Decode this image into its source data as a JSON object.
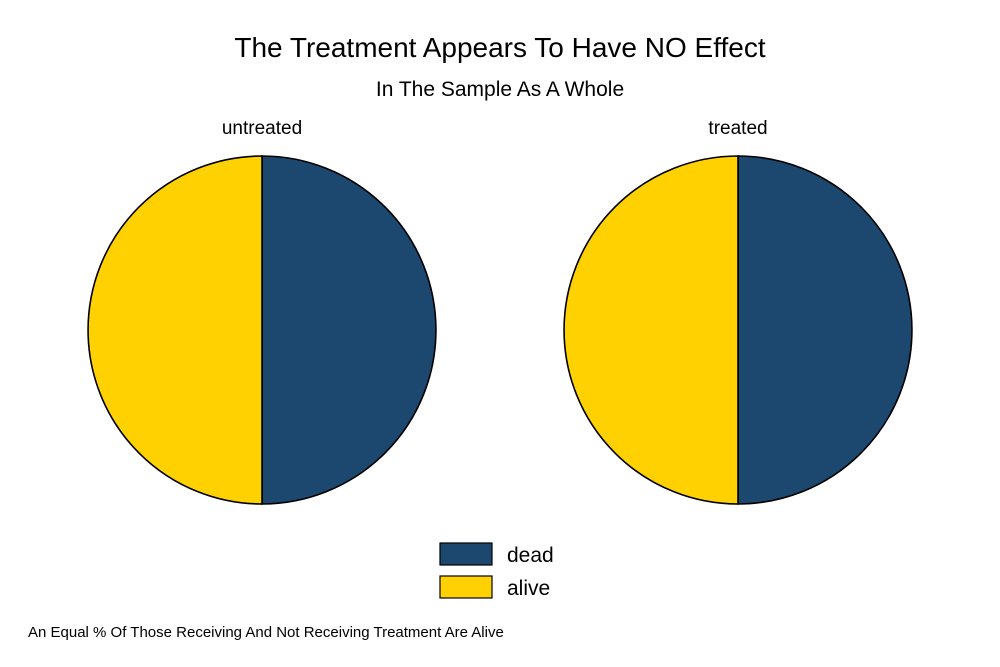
{
  "chart_data": {
    "type": "pie",
    "title": "The Treatment Appears To Have NO Effect",
    "subtitle": "In The Sample As A Whole",
    "note": "An Equal % Of Those Receiving And Not Receiving Treatment Are Alive",
    "categories": [
      "dead",
      "alive"
    ],
    "colors": {
      "dead": "#1c4870",
      "alive": "#ffd100"
    },
    "legend_position": "bottom-center",
    "panels": [
      {
        "name": "untreated",
        "values": [
          50,
          50
        ]
      },
      {
        "name": "treated",
        "values": [
          50,
          50
        ]
      }
    ]
  }
}
